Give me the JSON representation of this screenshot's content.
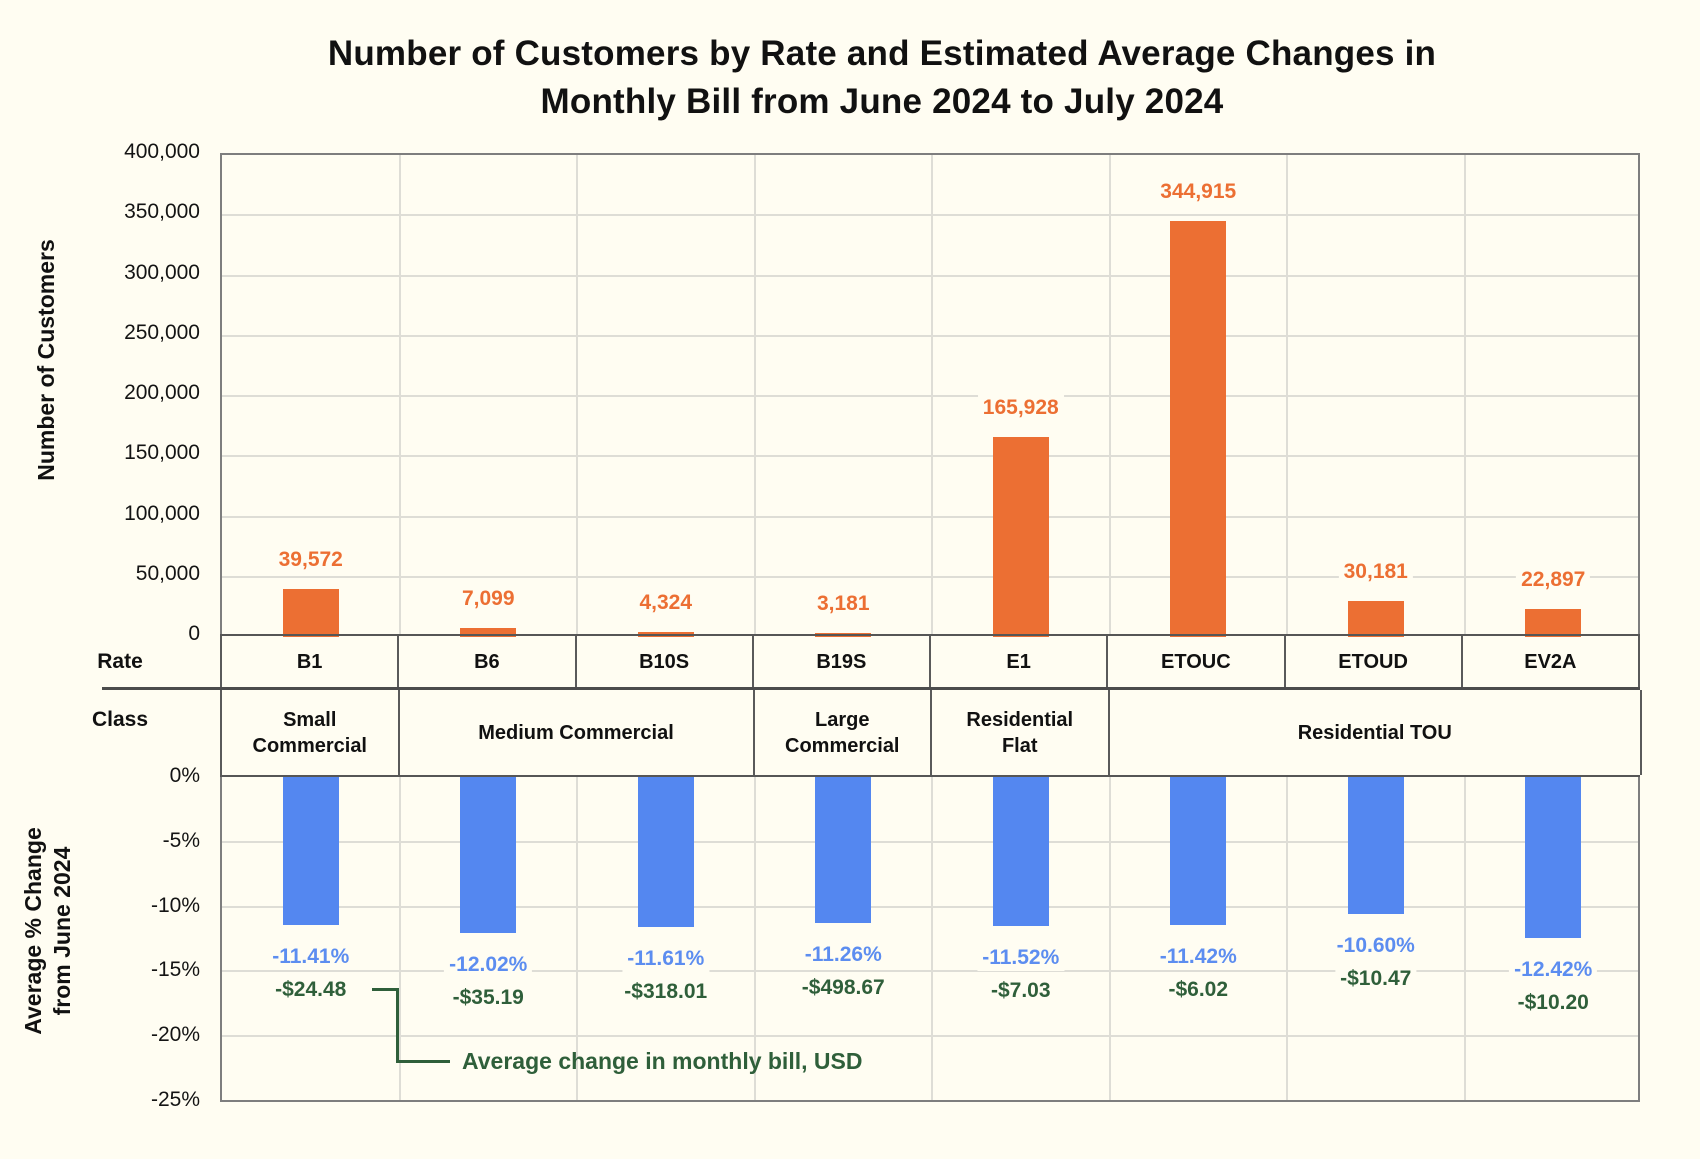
{
  "title": {
    "line1": "Number of Customers by Rate and Estimated Average Changes in",
    "line2": "Monthly Bill from June 2024 to July 2024"
  },
  "row_headers": {
    "rate": "Rate",
    "class": "Class"
  },
  "axis_titles": {
    "top": "Number of Customers",
    "bottom_line1": "Average % Change",
    "bottom_line2": "from June 2024"
  },
  "annotation": {
    "text": "Average change in monthly bill, USD"
  },
  "colors": {
    "orange": "#EC6F33",
    "blue_bar": "#5487F0",
    "blue_label": "#5C8DF0",
    "green": "#2F5F3A",
    "background": "#FFFDF2",
    "gridline": "#DEDDD6",
    "axis_border": "#7E7E7E",
    "table_line": "#5A5A5A",
    "text": "#141414"
  },
  "chart_data": {
    "type": "bar",
    "categories": [
      "B1",
      "B6",
      "B10S",
      "B19S",
      "E1",
      "ETOUC",
      "ETOUD",
      "EV2A"
    ],
    "classes": [
      {
        "label": "Small Commercial",
        "span": 1
      },
      {
        "label": "Medium Commercial",
        "span": 2
      },
      {
        "label": "Large Commercial",
        "span": 1
      },
      {
        "label": "Residential Flat",
        "span": 1
      },
      {
        "label": "Residential TOU",
        "span": 3
      }
    ],
    "series": [
      {
        "name": "Number of Customers",
        "values": [
          39572,
          7099,
          4324,
          3181,
          165928,
          344915,
          30181,
          22897
        ],
        "labels": [
          "39,572",
          "7,099",
          "4,324",
          "3,181",
          "165,928",
          "344,915",
          "30,181",
          "22,897"
        ]
      },
      {
        "name": "Average % Change from June 2024",
        "values": [
          -11.41,
          -12.02,
          -11.61,
          -11.26,
          -11.52,
          -11.42,
          -10.6,
          -12.42
        ],
        "labels": [
          "-11.41%",
          "-12.02%",
          "-11.61%",
          "-11.26%",
          "-11.52%",
          "-11.42%",
          "-10.60%",
          "-12.42%"
        ]
      },
      {
        "name": "Average change in monthly bill, USD",
        "values": [
          -24.48,
          -35.19,
          -318.01,
          -498.67,
          -7.03,
          -6.02,
          -10.47,
          -10.2
        ],
        "labels": [
          "-$24.48",
          "-$35.19",
          "-$318.01",
          "-$498.67",
          "-$7.03",
          "-$6.02",
          "-$10.47",
          "-$10.20"
        ]
      }
    ],
    "top_axis": {
      "min": 0,
      "max": 400000,
      "step": 50000,
      "tick_labels": [
        "400,000",
        "350,000",
        "300,000",
        "250,000",
        "200,000",
        "150,000",
        "100,000",
        "50,000",
        "0"
      ]
    },
    "bottom_axis": {
      "min": -25,
      "max": 0,
      "step": -5,
      "tick_labels": [
        "0%",
        "-5%",
        "-10%",
        "-15%",
        "-20%",
        "-25%"
      ]
    },
    "grid": true,
    "legend": "none"
  }
}
